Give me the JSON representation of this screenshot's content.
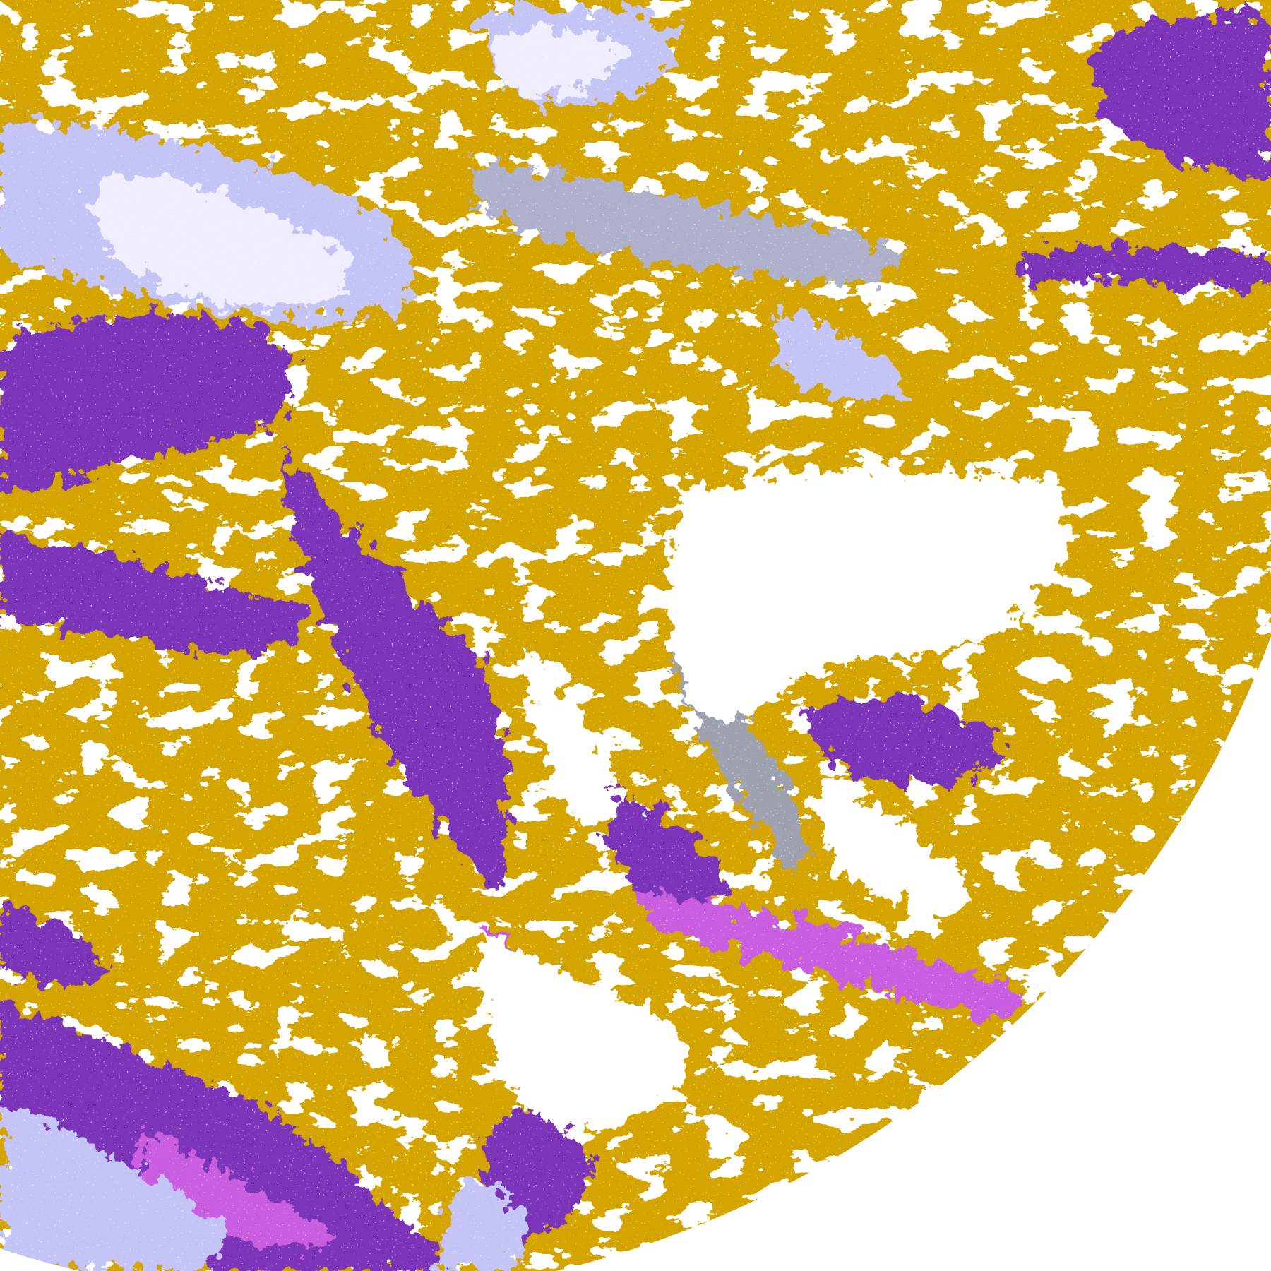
{
  "image": {
    "colors": {
      "background": "#ffffff",
      "gold": "#d4a400",
      "purple": "#7b36b8",
      "magenta": "#c95ee0",
      "lavender": "#c4c4f6",
      "pale": "#eeeeff",
      "gray": "#9ea2b0"
    }
  }
}
